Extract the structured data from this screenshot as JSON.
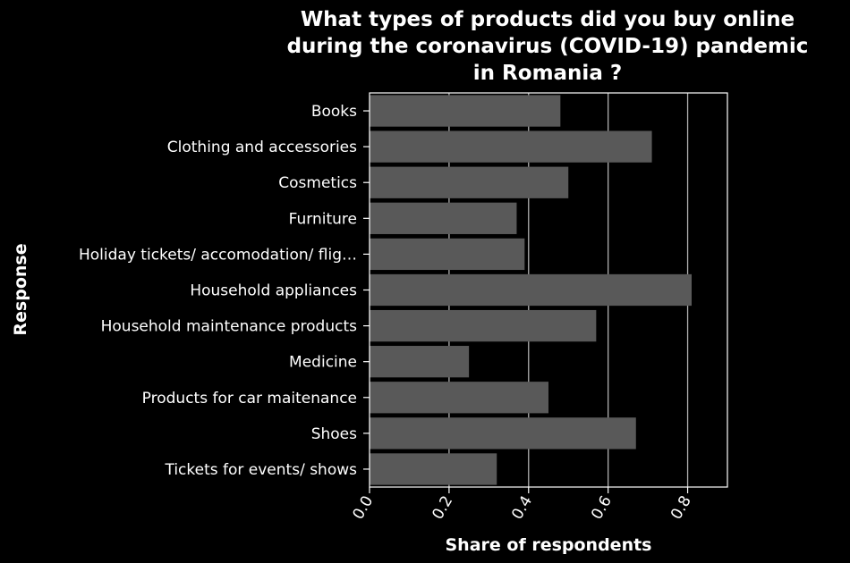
{
  "chart_data": {
    "type": "bar",
    "orientation": "horizontal",
    "title_lines": [
      "What types of products did you buy online",
      "during the coronavirus (COVID-19) pandemic",
      "in Romania ?"
    ],
    "xlabel": "Share of respondents",
    "ylabel": "Response",
    "categories": [
      "Books",
      "Clothing and accessories",
      "Cosmetics",
      "Furniture",
      "Holiday tickets/ accomodation/ flig…",
      "Household appliances",
      "Household maintenance products",
      "Medicine",
      "Products for car maitenance",
      "Shoes",
      "Tickets for events/ shows"
    ],
    "values": [
      0.48,
      0.71,
      0.5,
      0.37,
      0.39,
      0.81,
      0.57,
      0.25,
      0.45,
      0.67,
      0.32
    ],
    "xlim": [
      0,
      0.9
    ],
    "xticks": [
      "0.0",
      "0.2",
      "0.4",
      "0.6",
      "0.8"
    ],
    "xtick_values": [
      0,
      0.2,
      0.4,
      0.6,
      0.8
    ],
    "grid": "vertical",
    "colors": {
      "background": "#000000",
      "bar": "#595959",
      "text": "#ffffff",
      "grid": "#b0b0b0"
    }
  }
}
